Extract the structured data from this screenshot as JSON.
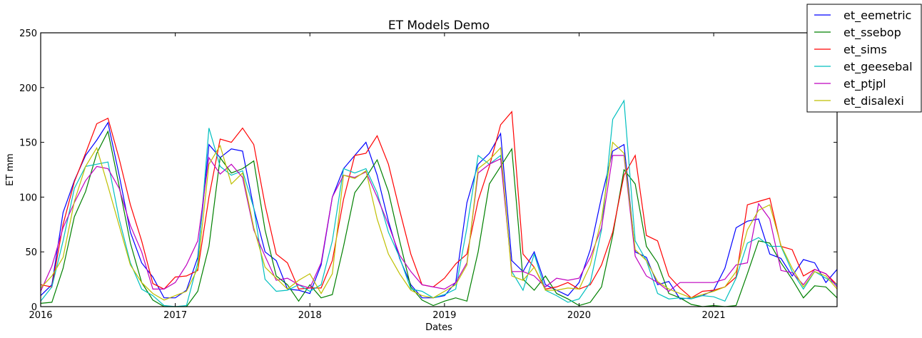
{
  "chart_data": {
    "type": "line",
    "title": "ET Models Demo",
    "xlabel": "Dates",
    "ylabel": "ET mm",
    "ylim": [
      0,
      250
    ],
    "yticks": [
      0,
      50,
      100,
      150,
      200,
      250
    ],
    "xlim": [
      "2016-01",
      "2021-12"
    ],
    "xticks": [
      "2016",
      "2017",
      "2018",
      "2019",
      "2020",
      "2021"
    ],
    "grid": false,
    "legend_position": "top-right",
    "x_start": "2016-01",
    "x_frequency": "monthly",
    "series": [
      {
        "name": "et_eemetric",
        "color": "#0000ff",
        "values": [
          10,
          20,
          86,
          115,
          138,
          152,
          168,
          120,
          68,
          40,
          27,
          8,
          8,
          15,
          45,
          148,
          136,
          144,
          142,
          90,
          50,
          42,
          16,
          15,
          12,
          38,
          100,
          126,
          138,
          150,
          120,
          78,
          44,
          20,
          8,
          8,
          10,
          22,
          95,
          130,
          140,
          158,
          42,
          32,
          50,
          20,
          15,
          10,
          22,
          52,
          100,
          142,
          148,
          50,
          45,
          20,
          23,
          7,
          8,
          10,
          15,
          35,
          72,
          78,
          80,
          48,
          44,
          28,
          43,
          40,
          22,
          34
        ]
      },
      {
        "name": "et_ssebop",
        "color": "#008000",
        "values": [
          3,
          4,
          35,
          82,
          105,
          140,
          160,
          110,
          58,
          22,
          6,
          0,
          0,
          0,
          14,
          55,
          136,
          122,
          126,
          133,
          70,
          28,
          20,
          5,
          20,
          8,
          11,
          55,
          104,
          118,
          134,
          105,
          60,
          18,
          6,
          1,
          5,
          8,
          5,
          50,
          112,
          128,
          144,
          25,
          15,
          28,
          12,
          7,
          1,
          4,
          18,
          65,
          125,
          112,
          55,
          40,
          12,
          8,
          2,
          0,
          1,
          0,
          1,
          30,
          60,
          58,
          40,
          25,
          8,
          19,
          18,
          8
        ]
      },
      {
        "name": "et_sims",
        "color": "#ff0000",
        "values": [
          20,
          18,
          75,
          114,
          140,
          167,
          172,
          135,
          93,
          60,
          21,
          16,
          27,
          28,
          33,
          100,
          153,
          150,
          163,
          148,
          93,
          48,
          40,
          16,
          17,
          17,
          42,
          98,
          138,
          140,
          156,
          130,
          88,
          48,
          20,
          18,
          26,
          39,
          48,
          97,
          128,
          166,
          178,
          48,
          36,
          16,
          18,
          22,
          16,
          20,
          38,
          68,
          120,
          138,
          65,
          60,
          28,
          17,
          8,
          14,
          15,
          18,
          27,
          93,
          96,
          99,
          55,
          52,
          28,
          34,
          30,
          20
        ]
      },
      {
        "name": "et_geesebal",
        "color": "#00bfbf",
        "values": [
          5,
          18,
          60,
          108,
          128,
          130,
          132,
          80,
          40,
          16,
          10,
          1,
          0,
          1,
          40,
          163,
          128,
          120,
          124,
          90,
          25,
          14,
          15,
          20,
          14,
          20,
          60,
          126,
          122,
          126,
          104,
          68,
          45,
          16,
          14,
          8,
          11,
          16,
          72,
          138,
          130,
          138,
          32,
          15,
          48,
          15,
          10,
          4,
          7,
          22,
          70,
          171,
          188,
          60,
          42,
          12,
          7,
          8,
          7,
          10,
          9,
          5,
          26,
          58,
          63,
          55,
          55,
          32,
          16,
          32,
          26,
          20
        ]
      },
      {
        "name": "et_ptjpl",
        "color": "#bf00bf",
        "values": [
          14,
          37,
          72,
          95,
          115,
          128,
          126,
          108,
          74,
          50,
          16,
          16,
          22,
          38,
          60,
          136,
          121,
          130,
          118,
          70,
          46,
          24,
          26,
          20,
          17,
          40,
          100,
          120,
          118,
          123,
          100,
          75,
          47,
          32,
          20,
          18,
          16,
          22,
          40,
          122,
          130,
          135,
          32,
          32,
          28,
          18,
          26,
          24,
          26,
          45,
          72,
          138,
          138,
          46,
          28,
          22,
          14,
          22,
          22,
          22,
          22,
          25,
          38,
          40,
          94,
          80,
          33,
          31,
          20,
          34,
          30,
          18
        ]
      },
      {
        "name": "et_disalexi",
        "color": "#bfbf00",
        "values": [
          17,
          28,
          45,
          96,
          128,
          145,
          110,
          74,
          38,
          22,
          12,
          6,
          10,
          14,
          35,
          130,
          147,
          112,
          122,
          72,
          36,
          26,
          16,
          24,
          30,
          12,
          30,
          120,
          117,
          124,
          80,
          48,
          30,
          15,
          10,
          8,
          14,
          20,
          38,
          126,
          134,
          145,
          28,
          24,
          36,
          15,
          15,
          17,
          16,
          38,
          80,
          150,
          140,
          52,
          42,
          23,
          16,
          12,
          8,
          11,
          14,
          18,
          32,
          70,
          88,
          93,
          56,
          35,
          18,
          32,
          28,
          16
        ]
      }
    ]
  }
}
